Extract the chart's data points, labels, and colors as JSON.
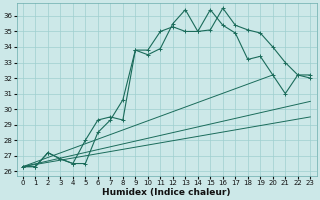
{
  "xlabel": "Humidex (Indice chaleur)",
  "bg_color": "#cce8e8",
  "grid_color": "#9fcfcf",
  "line_color": "#1a6b5a",
  "xlim": [
    -0.5,
    23.5
  ],
  "ylim": [
    25.7,
    36.8
  ],
  "yticks": [
    26,
    27,
    28,
    29,
    30,
    31,
    32,
    33,
    34,
    35,
    36
  ],
  "xticks": [
    0,
    1,
    2,
    3,
    4,
    5,
    6,
    7,
    8,
    9,
    10,
    11,
    12,
    13,
    14,
    15,
    16,
    17,
    18,
    19,
    20,
    21,
    22,
    23
  ],
  "curve1_x": [
    0,
    1,
    2,
    3,
    4,
    5,
    6,
    7,
    8,
    9,
    10,
    11,
    12,
    13,
    14,
    15,
    16,
    17,
    18,
    19,
    20,
    21,
    22,
    23
  ],
  "curve1_y": [
    26.3,
    26.3,
    27.2,
    26.8,
    26.5,
    26.5,
    28.5,
    29.3,
    30.6,
    33.8,
    33.5,
    33.9,
    35.5,
    36.4,
    35.0,
    35.1,
    36.5,
    35.4,
    35.1,
    34.9,
    34.0,
    33.0,
    32.2,
    32.2
  ],
  "curve2_x": [
    0,
    1,
    2,
    3,
    4,
    5,
    6,
    7,
    8,
    9,
    10,
    11,
    12,
    13,
    14,
    15,
    16,
    17,
    18,
    19,
    20,
    21,
    22,
    23
  ],
  "curve2_y": [
    26.3,
    26.3,
    27.2,
    26.8,
    26.5,
    28.0,
    29.3,
    29.5,
    29.3,
    33.8,
    33.8,
    35.0,
    35.3,
    35.0,
    35.0,
    36.4,
    35.4,
    34.9,
    33.2,
    33.4,
    32.2,
    31.0,
    32.2,
    32.0
  ],
  "line3_x": [
    0,
    20
  ],
  "line3_y": [
    26.3,
    32.2
  ],
  "line4_x": [
    0,
    23
  ],
  "line4_y": [
    26.3,
    30.5
  ],
  "line5_x": [
    0,
    23
  ],
  "line5_y": [
    26.3,
    29.5
  ],
  "xlabel_fontsize": 6.5,
  "tick_fontsize": 5.0
}
